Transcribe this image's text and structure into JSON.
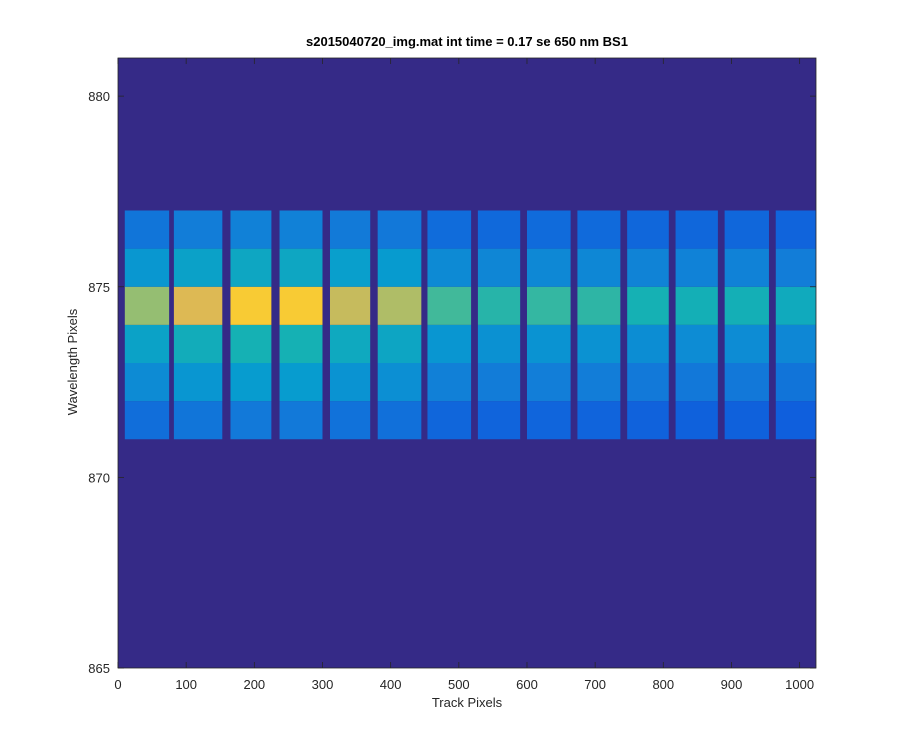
{
  "chart_data": {
    "type": "heatmap",
    "title": "s2015040720_img.mat int time = 0.17 se  650 nm BS1",
    "xlabel": "Track Pixels",
    "ylabel": "Wavelength Pixels",
    "xlim": [
      0,
      1024
    ],
    "ylim": [
      865,
      881
    ],
    "xticks": [
      0,
      100,
      200,
      300,
      400,
      500,
      600,
      700,
      800,
      900,
      1000
    ],
    "yticks": [
      865,
      870,
      875,
      880
    ],
    "colormap": "parula",
    "background_value": 0,
    "row_edges": [
      871,
      872,
      873,
      874,
      875,
      876,
      877
    ],
    "row_profile": [
      0.28,
      0.45,
      0.6,
      0.95,
      0.52,
      0.32
    ],
    "fiber_segments": [
      {
        "start": 10,
        "end": 75,
        "intensity": 0.82
      },
      {
        "start": 82,
        "end": 153,
        "intensity": 0.94
      },
      {
        "start": 165,
        "end": 225,
        "intensity": 1.0
      },
      {
        "start": 237,
        "end": 300,
        "intensity": 1.0
      },
      {
        "start": 311,
        "end": 370,
        "intensity": 0.9
      },
      {
        "start": 381,
        "end": 445,
        "intensity": 0.86
      },
      {
        "start": 454,
        "end": 518,
        "intensity": 0.7
      },
      {
        "start": 528,
        "end": 590,
        "intensity": 0.66
      },
      {
        "start": 600,
        "end": 664,
        "intensity": 0.68
      },
      {
        "start": 674,
        "end": 737,
        "intensity": 0.67
      },
      {
        "start": 747,
        "end": 808,
        "intensity": 0.63
      },
      {
        "start": 818,
        "end": 880,
        "intensity": 0.62
      },
      {
        "start": 890,
        "end": 955,
        "intensity": 0.62
      },
      {
        "start": 965,
        "end": 1024,
        "intensity": 0.58
      }
    ]
  }
}
